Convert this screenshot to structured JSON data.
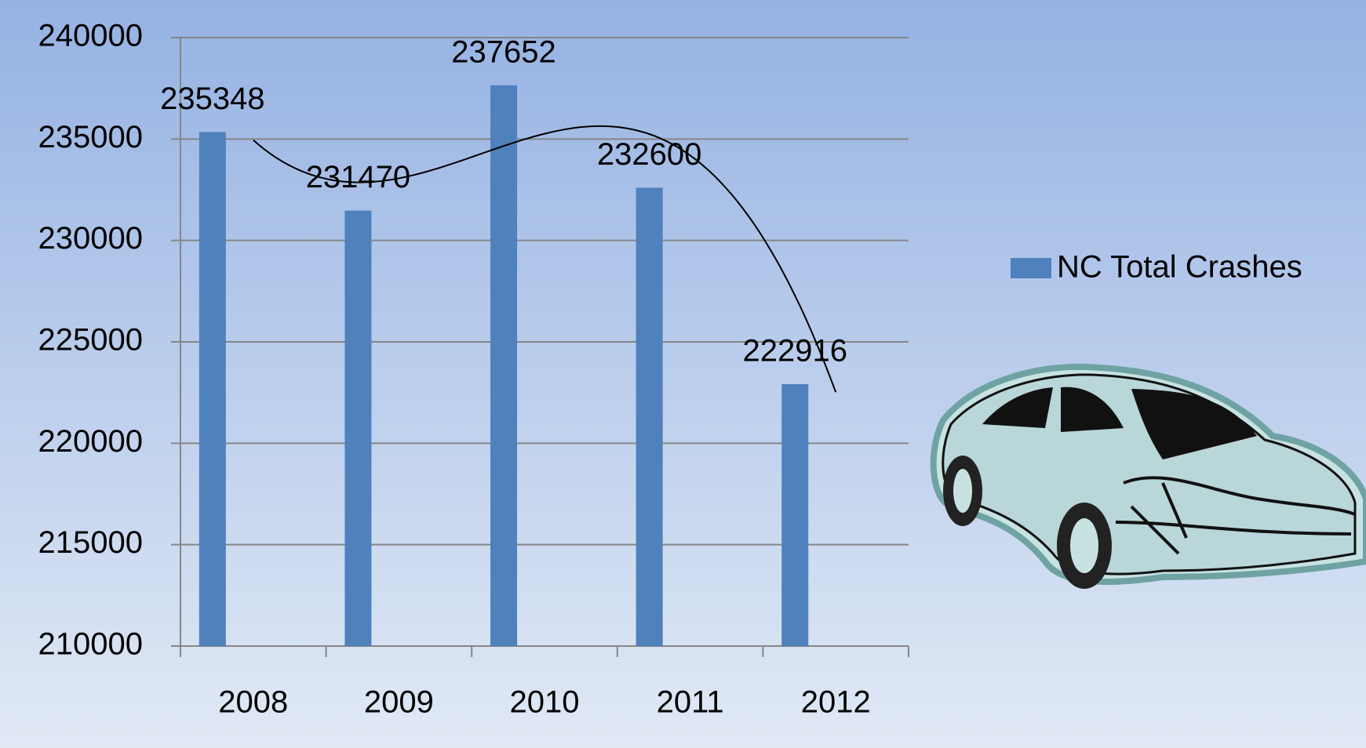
{
  "chart_data": {
    "type": "bar",
    "categories": [
      "2008",
      "2009",
      "2010",
      "2011",
      "2012"
    ],
    "series": [
      {
        "name": "NC Total Crashes",
        "color": "#4f81bd",
        "values": [
          235348,
          231470,
          237652,
          232600,
          222916
        ]
      }
    ],
    "ylim": [
      210000,
      240000
    ],
    "yticks": [
      210000,
      215000,
      220000,
      225000,
      230000,
      235000,
      240000
    ],
    "grid": true,
    "legend": "right",
    "trendline": "polynomial"
  }
}
